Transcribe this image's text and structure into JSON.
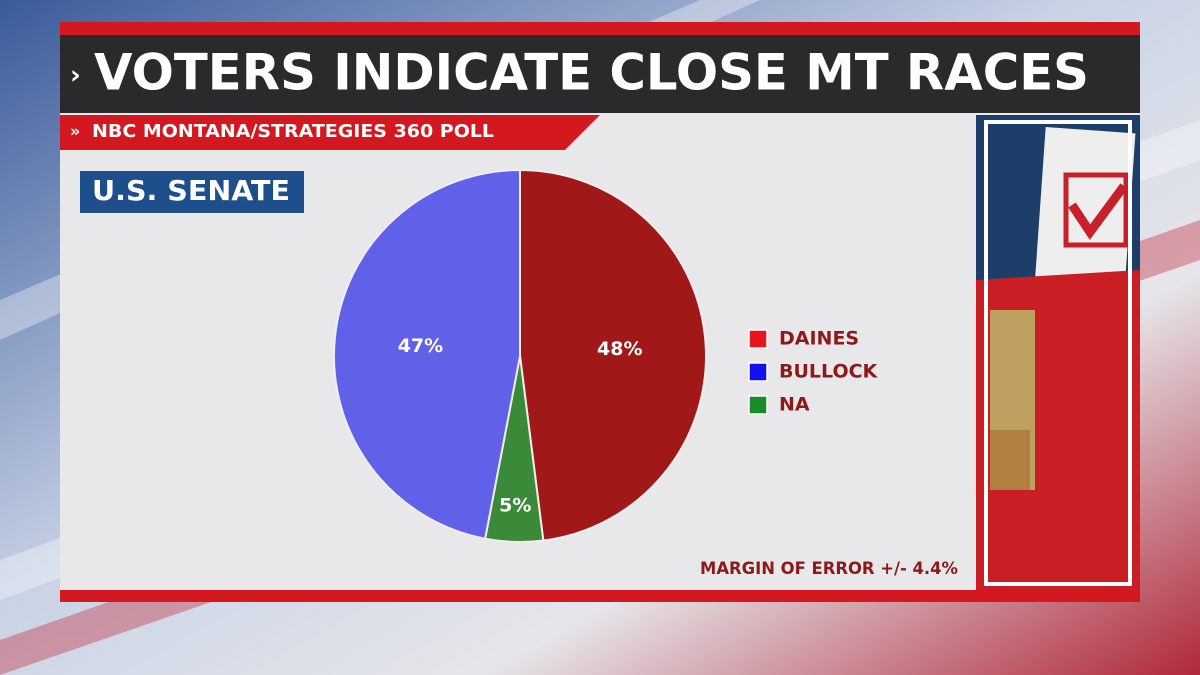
{
  "chart_data": {
    "type": "pie",
    "title": "VOTERS INDICATE CLOSE MT RACES",
    "subtitle": "NBC MONTANA/STRATEGIES 360 POLL",
    "section_label": "U.S. SENATE",
    "categories": [
      "DAINES",
      "BULLOCK",
      "NA"
    ],
    "values": [
      48,
      47,
      5
    ],
    "value_labels": [
      "48%",
      "47%",
      "5%"
    ],
    "colors": [
      "#a01818",
      "#6060e8",
      "#3a8a3a"
    ],
    "legend_colors": [
      "#e8141e",
      "#1010f0",
      "#1a8a2a"
    ],
    "note": "MARGIN OF ERROR +/- 4.4%"
  }
}
